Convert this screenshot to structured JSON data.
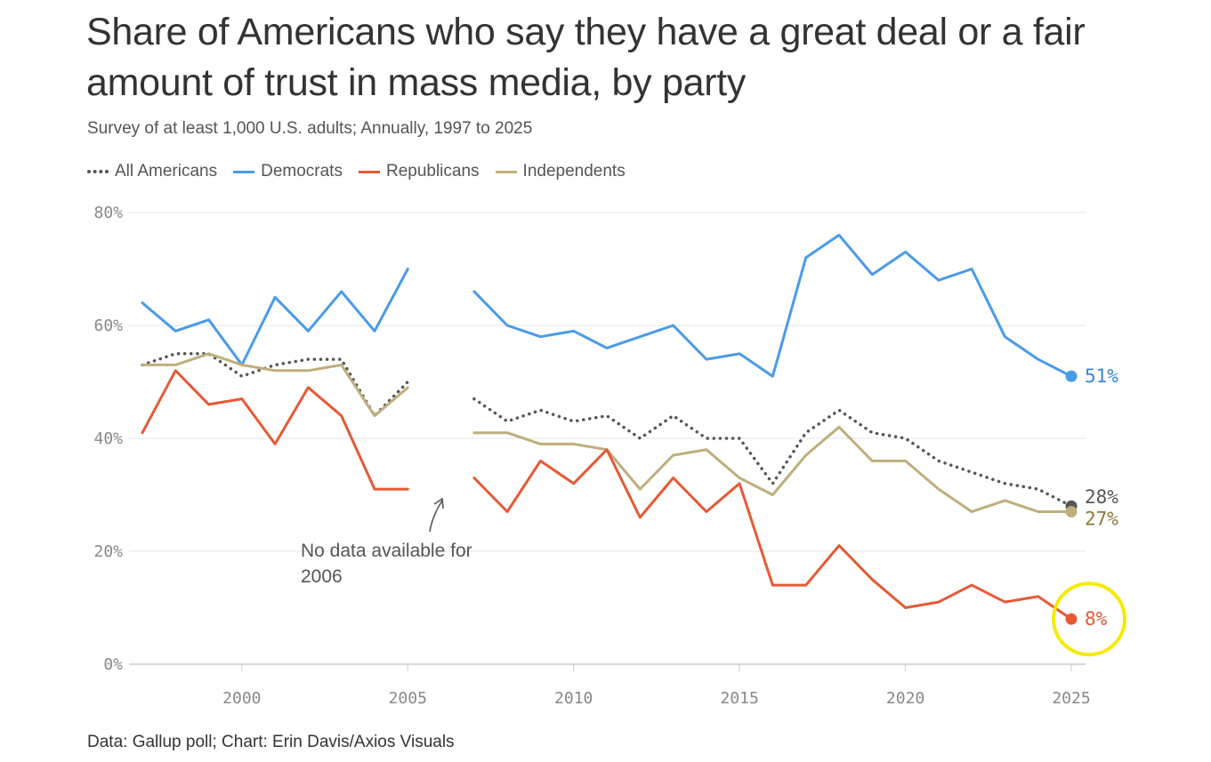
{
  "header": {
    "title": "Share of Americans who say they have a great deal or a fair amount of trust in mass media, by party",
    "subtitle": "Survey of at least 1,000 U.S. adults; Annually, 1997 to 2025"
  },
  "legend": {
    "all": "All Americans",
    "dem": "Democrats",
    "rep": "Republicans",
    "ind": "Independents"
  },
  "footer": {
    "credit": "Data: Gallup poll; Chart: Erin Davis/Axios Visuals"
  },
  "annotation": {
    "line1": "No data available for",
    "line2": "2006"
  },
  "colors": {
    "all": "#555555",
    "dem": "#4a9be8",
    "rep": "#e55a35",
    "ind": "#bfae7c",
    "highlight": "#f5ea00"
  },
  "chart_data": {
    "type": "line",
    "title": "Share of Americans who say they have a great deal or a fair amount of trust in mass media, by party",
    "xlabel": "",
    "ylabel": "",
    "xlim": [
      1997,
      2025
    ],
    "ylim": [
      0,
      80
    ],
    "grid": true,
    "legend_position": "top-left",
    "y_ticks": [
      0,
      20,
      40,
      60,
      80
    ],
    "y_tick_labels": [
      "0%",
      "20%",
      "40%",
      "60%",
      "80%"
    ],
    "x_ticks": [
      2000,
      2005,
      2010,
      2015,
      2020,
      2025
    ],
    "x_tick_labels": [
      "2000",
      "2005",
      "2010",
      "2015",
      "2020",
      "2025"
    ],
    "x": [
      1997,
      1998,
      1999,
      2000,
      2001,
      2002,
      2003,
      2004,
      2005,
      2006,
      2007,
      2008,
      2009,
      2010,
      2011,
      2012,
      2013,
      2014,
      2015,
      2016,
      2017,
      2018,
      2019,
      2020,
      2021,
      2022,
      2023,
      2024,
      2025
    ],
    "series": [
      {
        "key": "dem",
        "name": "Democrats",
        "end_label": "51%",
        "values": [
          64,
          59,
          61,
          53,
          65,
          59,
          66,
          59,
          70,
          null,
          66,
          60,
          58,
          59,
          56,
          58,
          60,
          54,
          55,
          51,
          72,
          76,
          69,
          73,
          68,
          70,
          58,
          54,
          51
        ]
      },
      {
        "key": "all",
        "name": "All Americans",
        "end_label": "28%",
        "values": [
          53,
          55,
          55,
          51,
          53,
          54,
          54,
          44,
          50,
          null,
          47,
          43,
          45,
          43,
          44,
          40,
          44,
          40,
          40,
          32,
          41,
          45,
          41,
          40,
          36,
          34,
          32,
          31,
          28
        ]
      },
      {
        "key": "ind",
        "name": "Independents",
        "end_label": "27%",
        "values": [
          53,
          53,
          55,
          53,
          52,
          52,
          53,
          44,
          49,
          null,
          41,
          41,
          39,
          39,
          38,
          31,
          37,
          38,
          33,
          30,
          37,
          42,
          36,
          36,
          31,
          27,
          29,
          27,
          27
        ]
      },
      {
        "key": "rep",
        "name": "Republicans",
        "end_label": "8%",
        "values": [
          41,
          52,
          46,
          47,
          39,
          49,
          44,
          31,
          31,
          null,
          33,
          27,
          36,
          32,
          38,
          26,
          33,
          27,
          32,
          14,
          14,
          21,
          15,
          10,
          11,
          14,
          11,
          12,
          8
        ]
      }
    ],
    "annotations": [
      {
        "text": "No data available for 2006",
        "target_year": 2006
      }
    ],
    "highlight": {
      "series": "rep",
      "year": 2025,
      "value": 8
    }
  }
}
